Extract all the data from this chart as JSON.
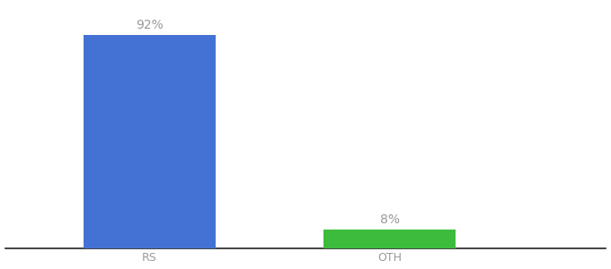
{
  "categories": [
    "RS",
    "OTH"
  ],
  "values": [
    92,
    8
  ],
  "bar_colors": [
    "#4472d4",
    "#3dbb3d"
  ],
  "label_texts": [
    "92%",
    "8%"
  ],
  "label_color": "#999999",
  "label_fontsize": 10,
  "tick_fontsize": 9,
  "tick_color": "#999999",
  "background_color": "#ffffff",
  "ylim": [
    0,
    105
  ],
  "bar_width": 0.55,
  "x_positions": [
    1,
    2
  ],
  "xlim": [
    0.4,
    2.9
  ],
  "figsize": [
    6.8,
    3.0
  ],
  "dpi": 100
}
